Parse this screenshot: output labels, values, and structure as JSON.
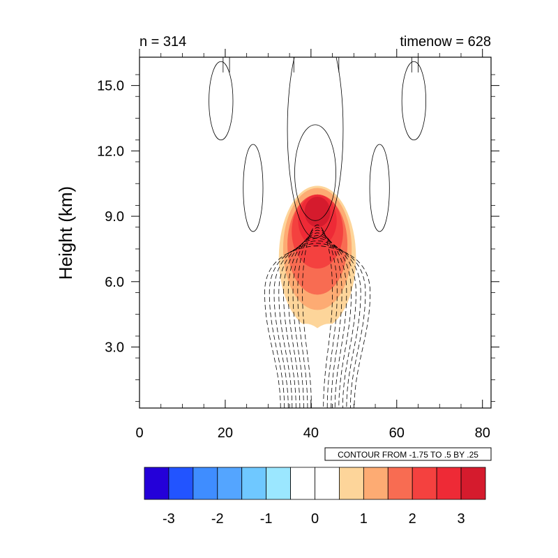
{
  "chart_data": {
    "type": "heatmap",
    "title_left": "n = 314",
    "title_right": "timenow = 628",
    "xlabel": "",
    "ylabel": "Height (km)",
    "xlim": [
      0,
      82
    ],
    "ylim": [
      0.2,
      16.3
    ],
    "x_ticks": [
      0,
      20,
      40,
      60,
      80
    ],
    "y_ticks": [
      3.0,
      6.0,
      9.0,
      12.0,
      15.0
    ],
    "y_tick_labels": [
      "3.0",
      "6.0",
      "9.0",
      "12.0",
      "15.0"
    ],
    "contour_info": "CONTOUR FROM -1.75 TO .5 BY .25",
    "colorbar": {
      "min": -3.5,
      "max": 3.5,
      "step": 0.5,
      "tick_values": [
        -3,
        -2,
        -1,
        0,
        1,
        2,
        3
      ],
      "tick_labels": [
        "-3",
        "-2",
        "-1",
        "0",
        "1",
        "2",
        "3"
      ],
      "colors": [
        "#2400d9",
        "#2254ff",
        "#3f8dff",
        "#54a5ff",
        "#6fc8ff",
        "#9be7ff",
        "#ffffff",
        "#ffffff",
        "#fdd59a",
        "#fdab73",
        "#f86c52",
        "#f4413f",
        "#ee2a36",
        "#d51b2d"
      ]
    },
    "filled_field": {
      "description_free": true,
      "center": [
        41.5,
        7.1
      ],
      "levels": [
        {
          "value": 0.5,
          "cx": 41.5,
          "cy": 7.1,
          "rx": 9.0,
          "ry": 3.3
        },
        {
          "value": 1.0,
          "cx": 41.5,
          "cy": 7.5,
          "rx": 8.0,
          "ry": 2.8
        },
        {
          "value": 1.5,
          "cx": 41.5,
          "cy": 7.7,
          "rx": 7.0,
          "ry": 2.3
        },
        {
          "value": 2.0,
          "cx": 41.5,
          "cy": 8.3,
          "rx": 6.0,
          "ry": 1.7
        },
        {
          "value": 2.5,
          "cx": 41.5,
          "cy": 8.8,
          "rx": 4.5,
          "ry": 1.2
        },
        {
          "value": 3.0,
          "cx": 41.5,
          "cy": 9.2,
          "rx": 3.0,
          "ry": 0.7
        }
      ]
    },
    "contours": {
      "solid": [
        {
          "cx": 41.0,
          "cy": 11.0,
          "rx": 4.8,
          "ry": 2.2
        },
        {
          "cx": 41.0,
          "cy": 13.0,
          "rx": 6.5,
          "ry": 5.0
        },
        {
          "cx": 19.0,
          "cy": 14.3,
          "rx": 2.8,
          "ry": 1.8
        },
        {
          "cx": 64.0,
          "cy": 14.3,
          "rx": 2.8,
          "ry": 1.8
        },
        {
          "cx": 26.5,
          "cy": 10.3,
          "rx": 2.3,
          "ry": 2.0
        },
        {
          "cx": 56.0,
          "cy": 10.3,
          "rx": 2.3,
          "ry": 2.0
        }
      ],
      "dashed_count": 9
    }
  }
}
